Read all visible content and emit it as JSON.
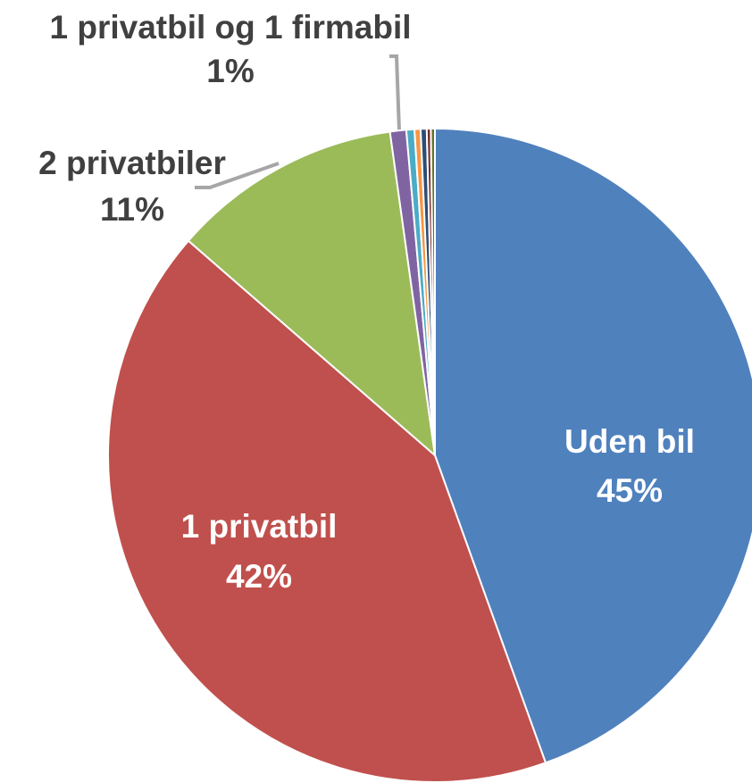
{
  "chart_data": {
    "type": "pie",
    "categories": [
      "Uden bil",
      "1 privatbil",
      "2 privatbiler",
      "1 privatbil og 1 firmabil",
      null,
      null,
      null,
      null,
      null
    ],
    "values": [
      44.5,
      41.9,
      11.4,
      0.8,
      0.4,
      0.3,
      0.3,
      0.2,
      0.2
    ],
    "value_labels": [
      "45%",
      "42%",
      "11%",
      "1%",
      null,
      null,
      null,
      null,
      null
    ],
    "colors": [
      "#4f81bd",
      "#c0504d",
      "#9bbb59",
      "#8064a2",
      "#4bacc6",
      "#f79646",
      "#2c4d75",
      "#772c2a",
      "#5f7530"
    ]
  }
}
